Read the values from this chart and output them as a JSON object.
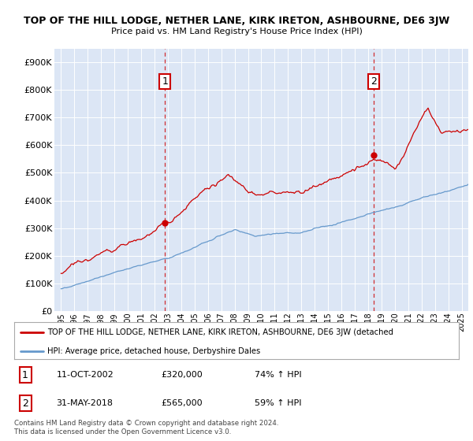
{
  "title": "TOP OF THE HILL LODGE, NETHER LANE, KIRK IRETON, ASHBOURNE, DE6 3JW",
  "subtitle": "Price paid vs. HM Land Registry's House Price Index (HPI)",
  "legend_line1": "TOP OF THE HILL LODGE, NETHER LANE, KIRK IRETON, ASHBOURNE, DE6 3JW (detached",
  "legend_line2": "HPI: Average price, detached house, Derbyshire Dales",
  "annotation1_date": "11-OCT-2002",
  "annotation1_price": "£320,000",
  "annotation1_hpi": "74% ↑ HPI",
  "annotation1_year": 2002.78,
  "annotation1_value": 320000,
  "annotation2_date": "31-MAY-2018",
  "annotation2_price": "£565,000",
  "annotation2_hpi": "59% ↑ HPI",
  "annotation2_year": 2018.42,
  "annotation2_value": 565000,
  "red_color": "#cc0000",
  "blue_color": "#6699cc",
  "background_color": "#dce6f5",
  "footer_text": "Contains HM Land Registry data © Crown copyright and database right 2024.\nThis data is licensed under the Open Government Licence v3.0.",
  "ylim_max": 950000,
  "xlim_start": 1994.5,
  "xlim_end": 2025.5
}
